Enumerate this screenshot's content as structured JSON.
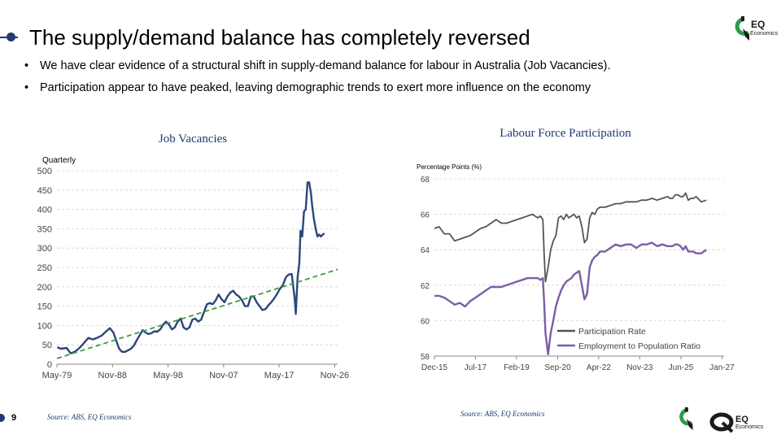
{
  "slide": {
    "title": "The supply/demand balance has completely reversed",
    "bullets": [
      "We have clear evidence of a structural shift in supply-demand balance for labour in Australia (Job Vacancies).",
      "Participation appear to have peaked, leaving demographic trends to exert more influence on the economy"
    ],
    "page_number": "9",
    "source_left": "Source: ABS, EQ Economics",
    "source_right": "Source: ABS, EQ Economics",
    "logo_top": {
      "line1": "EQ",
      "line2": "Economics"
    },
    "logo_bottom": {
      "line1": "EQ",
      "line2": "Economics"
    },
    "colors": {
      "navy": "#1f3a6e",
      "series_vac": "#2b4778",
      "trend": "#3a9e3a",
      "part": "#555555",
      "emp": "#7b5ea7",
      "logo_green": "#2e9b4a"
    }
  },
  "chart_data": [
    {
      "type": "line",
      "title": "Job Vacancies",
      "ylabel": "Quarterly",
      "ylim": [
        0,
        500
      ],
      "yticks": [
        0,
        50,
        100,
        150,
        200,
        250,
        300,
        350,
        400,
        450,
        500
      ],
      "xlim": [
        1979.35,
        2027.35
      ],
      "xticks": [
        {
          "x": 1979.35,
          "label": "May-79"
        },
        {
          "x": 1988.85,
          "label": "Nov-88"
        },
        {
          "x": 1998.35,
          "label": "May-98"
        },
        {
          "x": 2007.85,
          "label": "Nov-07"
        },
        {
          "x": 2017.35,
          "label": "May-17"
        },
        {
          "x": 2026.85,
          "label": "Nov-26"
        }
      ],
      "grid": true,
      "series": [
        {
          "style": "solid",
          "x": [
            1979.4,
            1980.0,
            1981.0,
            1981.7,
            1982.5,
            1983.2,
            1984.0,
            1984.7,
            1985.5,
            1986.2,
            1987.0,
            1987.7,
            1988.4,
            1989.0,
            1989.5,
            1990.0,
            1990.5,
            1991.0,
            1991.5,
            1992.0,
            1992.5,
            1993.0,
            1993.5,
            1994.0,
            1994.5,
            1995.0,
            1995.5,
            1996.0,
            1996.5,
            1997.0,
            1997.5,
            1998.0,
            1998.5,
            1999.0,
            1999.5,
            2000.0,
            2000.5,
            2001.0,
            2001.5,
            2002.0,
            2002.5,
            2003.0,
            2003.5,
            2004.0,
            2004.5,
            2005.0,
            2005.5,
            2006.0,
            2006.5,
            2007.0,
            2007.5,
            2008.0,
            2008.5,
            2009.0,
            2009.5,
            2010.0,
            2010.5,
            2011.0,
            2011.5,
            2012.0,
            2012.5,
            2013.0,
            2013.5,
            2014.0,
            2014.5,
            2015.0,
            2015.5,
            2016.0,
            2016.5,
            2017.0,
            2017.5,
            2018.0,
            2018.5,
            2019.0,
            2019.5,
            2020.0,
            2020.2,
            2020.5,
            2020.8,
            2021.0,
            2021.3,
            2021.6,
            2021.9,
            2022.2,
            2022.5,
            2022.8,
            2023.0,
            2023.3,
            2023.6,
            2023.9,
            2024.2,
            2024.5,
            2024.8,
            2025.1
          ],
          "y": [
            44,
            40,
            42,
            28,
            33,
            42,
            55,
            68,
            64,
            68,
            74,
            84,
            93,
            82,
            60,
            40,
            32,
            32,
            36,
            40,
            48,
            62,
            75,
            88,
            82,
            78,
            80,
            85,
            84,
            90,
            102,
            110,
            103,
            90,
            95,
            110,
            118,
            95,
            90,
            95,
            115,
            118,
            110,
            115,
            135,
            155,
            158,
            155,
            165,
            180,
            168,
            160,
            175,
            185,
            190,
            180,
            175,
            165,
            150,
            150,
            175,
            175,
            160,
            150,
            140,
            142,
            152,
            160,
            170,
            182,
            195,
            205,
            225,
            232,
            233,
            170,
            130,
            225,
            260,
            345,
            330,
            395,
            400,
            470,
            470,
            440,
            410,
            375,
            350,
            330,
            335,
            330,
            335,
            338
          ]
        },
        {
          "style": "dashed",
          "x": [
            1979.35,
            2027.35
          ],
          "y": [
            15,
            245
          ]
        }
      ]
    },
    {
      "type": "line",
      "title": "Labour Force Participation",
      "ylabel": "Percentage Points (%)",
      "ylim": [
        58,
        68
      ],
      "yticks": [
        58,
        60,
        62,
        64,
        66,
        68
      ],
      "xlim": [
        2015.92,
        2027.08
      ],
      "xticks": [
        {
          "x": 2015.92,
          "label": "Dec-15"
        },
        {
          "x": 2017.5,
          "label": "Jul-17"
        },
        {
          "x": 2019.08,
          "label": "Feb-19"
        },
        {
          "x": 2020.67,
          "label": "Sep-20"
        },
        {
          "x": 2022.25,
          "label": "Apr-22"
        },
        {
          "x": 2023.83,
          "label": "Nov-23"
        },
        {
          "x": 2025.42,
          "label": "Jun-25"
        },
        {
          "x": 2027.0,
          "label": "Jan-27"
        }
      ],
      "grid": true,
      "legend_position": "bottom-right",
      "series": [
        {
          "name": "Participation Rate",
          "x": [
            2015.92,
            2016.1,
            2016.3,
            2016.5,
            2016.7,
            2016.9,
            2017.1,
            2017.3,
            2017.5,
            2017.7,
            2017.9,
            2018.1,
            2018.3,
            2018.5,
            2018.7,
            2018.9,
            2019.1,
            2019.3,
            2019.5,
            2019.7,
            2019.9,
            2020.0,
            2020.1,
            2020.15,
            2020.2,
            2020.3,
            2020.4,
            2020.5,
            2020.6,
            2020.7,
            2020.8,
            2020.9,
            2021.0,
            2021.1,
            2021.2,
            2021.3,
            2021.4,
            2021.5,
            2021.6,
            2021.7,
            2021.8,
            2021.9,
            2022.0,
            2022.1,
            2022.2,
            2022.3,
            2022.5,
            2022.7,
            2022.9,
            2023.1,
            2023.3,
            2023.5,
            2023.7,
            2023.9,
            2024.1,
            2024.3,
            2024.5,
            2024.7,
            2024.9,
            2025.0,
            2025.1,
            2025.2,
            2025.3,
            2025.4,
            2025.5,
            2025.6,
            2025.7,
            2025.8,
            2025.9,
            2026.0,
            2026.2,
            2026.4
          ],
          "y": [
            65.2,
            65.3,
            64.9,
            64.9,
            64.5,
            64.6,
            64.7,
            64.8,
            65.0,
            65.2,
            65.3,
            65.5,
            65.7,
            65.5,
            65.5,
            65.6,
            65.7,
            65.8,
            65.9,
            66.0,
            65.8,
            65.9,
            65.7,
            63.7,
            62.2,
            63.0,
            64.0,
            64.5,
            64.8,
            65.8,
            65.9,
            65.7,
            66.0,
            65.8,
            65.9,
            66.0,
            65.8,
            65.9,
            65.3,
            64.4,
            64.6,
            65.8,
            66.1,
            66.0,
            66.3,
            66.4,
            66.4,
            66.5,
            66.6,
            66.6,
            66.7,
            66.7,
            66.7,
            66.8,
            66.8,
            66.9,
            66.8,
            66.9,
            67.0,
            66.9,
            66.9,
            67.1,
            67.1,
            67.0,
            67.0,
            67.2,
            66.8,
            66.9,
            66.9,
            67.0,
            66.7,
            66.8
          ]
        },
        {
          "name": "Employment to Population Ratio",
          "x": [
            2015.92,
            2016.1,
            2016.3,
            2016.5,
            2016.7,
            2016.9,
            2017.1,
            2017.3,
            2017.5,
            2017.7,
            2017.9,
            2018.1,
            2018.3,
            2018.5,
            2018.7,
            2018.9,
            2019.1,
            2019.3,
            2019.5,
            2019.7,
            2019.9,
            2020.0,
            2020.1,
            2020.15,
            2020.2,
            2020.3,
            2020.4,
            2020.5,
            2020.6,
            2020.7,
            2020.8,
            2020.9,
            2021.0,
            2021.1,
            2021.2,
            2021.3,
            2021.4,
            2021.5,
            2021.6,
            2021.7,
            2021.8,
            2021.9,
            2022.0,
            2022.1,
            2022.2,
            2022.3,
            2022.5,
            2022.7,
            2022.9,
            2023.1,
            2023.3,
            2023.5,
            2023.7,
            2023.9,
            2024.1,
            2024.3,
            2024.5,
            2024.7,
            2024.9,
            2025.0,
            2025.1,
            2025.2,
            2025.3,
            2025.4,
            2025.5,
            2025.6,
            2025.7,
            2025.8,
            2025.9,
            2026.0,
            2026.2,
            2026.4
          ],
          "y": [
            61.4,
            61.4,
            61.3,
            61.1,
            60.9,
            61.0,
            60.8,
            61.1,
            61.3,
            61.5,
            61.7,
            61.9,
            61.9,
            61.9,
            62.0,
            62.1,
            62.2,
            62.3,
            62.4,
            62.4,
            62.4,
            62.3,
            62.4,
            61.0,
            59.3,
            58.1,
            59.3,
            60.0,
            60.8,
            61.3,
            61.7,
            62.0,
            62.2,
            62.3,
            62.4,
            62.6,
            62.7,
            62.8,
            62.0,
            61.2,
            61.5,
            63.0,
            63.4,
            63.6,
            63.7,
            63.9,
            63.9,
            64.1,
            64.3,
            64.2,
            64.3,
            64.3,
            64.1,
            64.3,
            64.3,
            64.4,
            64.2,
            64.3,
            64.2,
            64.2,
            64.2,
            64.3,
            64.3,
            64.2,
            64.0,
            64.2,
            63.9,
            63.9,
            63.9,
            63.8,
            63.8,
            64.0
          ]
        }
      ]
    }
  ]
}
